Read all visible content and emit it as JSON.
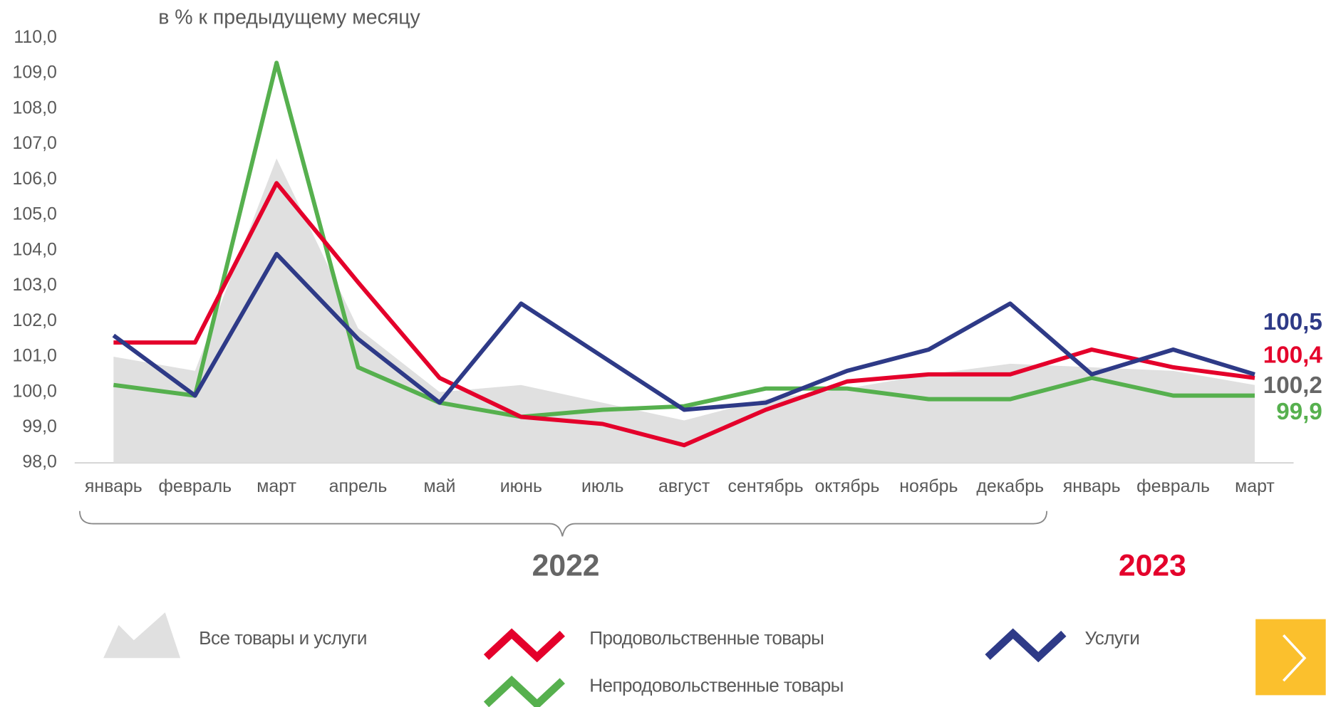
{
  "chart_data": {
    "type": "line",
    "subtitle": "в % к предыдущему месяцу",
    "categories": [
      "январь",
      "февраль",
      "март",
      "апрель",
      "май",
      "июнь",
      "июль",
      "август",
      "сентябрь",
      "октябрь",
      "ноябрь",
      "декабрь",
      "январь",
      "февраль",
      "март"
    ],
    "years": [
      {
        "label": "2022",
        "color": "#666666"
      },
      {
        "label": "2023",
        "color": "#e4002b"
      }
    ],
    "ylim": [
      98,
      110
    ],
    "yticks": [
      {
        "value": 98,
        "label": "98,0"
      },
      {
        "value": 99,
        "label": "99,0"
      },
      {
        "value": 100,
        "label": "100,0"
      },
      {
        "value": 101,
        "label": "101,0"
      },
      {
        "value": 102,
        "label": "102,0"
      },
      {
        "value": 103,
        "label": "103,0"
      },
      {
        "value": 104,
        "label": "104,0"
      },
      {
        "value": 105,
        "label": "105,0"
      },
      {
        "value": 106,
        "label": "106,0"
      },
      {
        "value": 107,
        "label": "107,0"
      },
      {
        "value": 108,
        "label": "108,0"
      },
      {
        "value": 109,
        "label": "109,0"
      },
      {
        "value": 110,
        "label": "110,0"
      }
    ],
    "series": [
      {
        "name": "Все товары и услуги",
        "style": "area",
        "color": "#e0e0e0",
        "label_color": "#666666",
        "end_label": "100,2",
        "values": [
          101.0,
          100.6,
          106.6,
          101.8,
          100.0,
          100.2,
          99.7,
          99.2,
          99.8,
          100.1,
          100.5,
          100.8,
          100.7,
          100.6,
          100.2
        ]
      },
      {
        "name": "Непродовольственные товары",
        "style": "line",
        "color": "#56b04e",
        "label_color": "#56b04e",
        "end_label": "99,9",
        "values": [
          100.2,
          99.9,
          109.3,
          100.7,
          99.7,
          99.3,
          99.5,
          99.6,
          100.1,
          100.1,
          99.8,
          99.8,
          100.4,
          99.9,
          99.9
        ]
      },
      {
        "name": "Продовольственные товары",
        "style": "line",
        "color": "#e4002b",
        "label_color": "#e4002b",
        "end_label": "100,4",
        "values": [
          101.4,
          101.4,
          105.9,
          103.1,
          100.4,
          99.3,
          99.1,
          98.5,
          99.5,
          100.3,
          100.5,
          100.5,
          101.2,
          100.7,
          100.4
        ]
      },
      {
        "name": "Услуги",
        "style": "line",
        "color": "#2e3a87",
        "label_color": "#2e3a87",
        "end_label": "100,5",
        "values": [
          101.6,
          99.9,
          103.9,
          101.5,
          99.7,
          102.5,
          101.0,
          99.5,
          99.7,
          100.6,
          101.2,
          102.5,
          100.5,
          101.2,
          100.5
        ]
      }
    ]
  }
}
